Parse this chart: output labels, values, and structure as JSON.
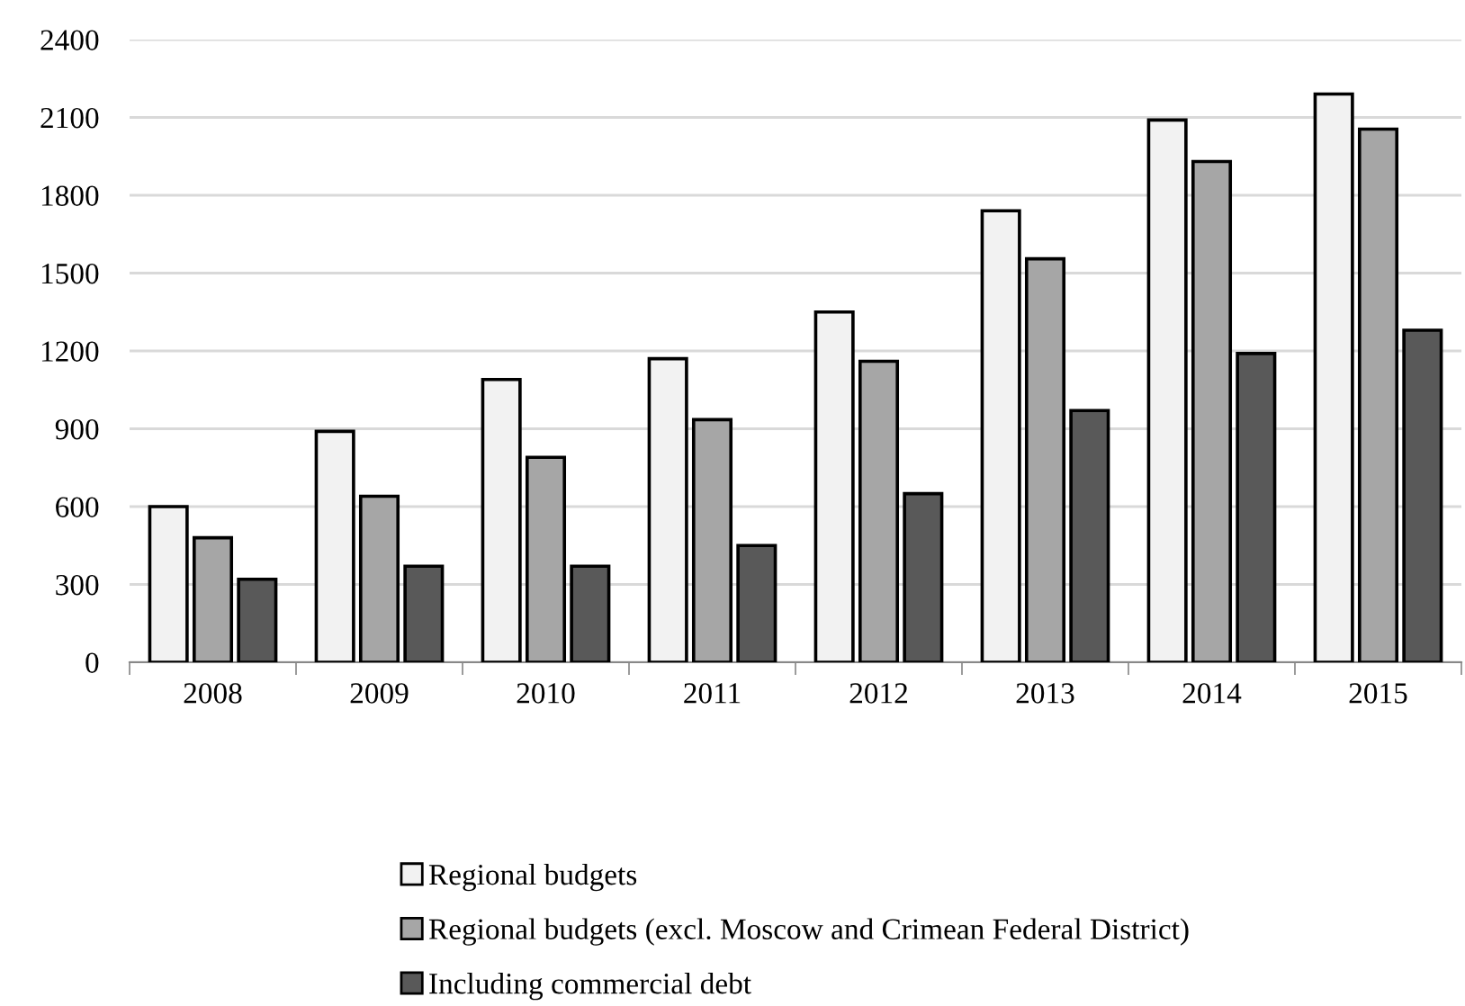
{
  "chart_data": {
    "type": "bar",
    "categories": [
      "2008",
      "2009",
      "2010",
      "2011",
      "2012",
      "2013",
      "2014",
      "2015"
    ],
    "series": [
      {
        "name": "Regional budgets",
        "color": "#f2f2f2",
        "values": [
          600,
          890,
          1090,
          1170,
          1350,
          1740,
          2090,
          2190
        ]
      },
      {
        "name": "Regional budgets (excl. Moscow and Crimean Federal District)",
        "color": "#a6a6a6",
        "values": [
          480,
          640,
          790,
          935,
          1160,
          1555,
          1930,
          2055
        ]
      },
      {
        "name": "Including commercial debt",
        "color": "#595959",
        "values": [
          320,
          370,
          370,
          450,
          650,
          970,
          1190,
          1280
        ]
      }
    ],
    "ylim": [
      0,
      2400
    ],
    "yticks": [
      0,
      300,
      600,
      900,
      1200,
      1500,
      1800,
      2100,
      2400
    ],
    "grid": "y",
    "legend": "bottom"
  }
}
